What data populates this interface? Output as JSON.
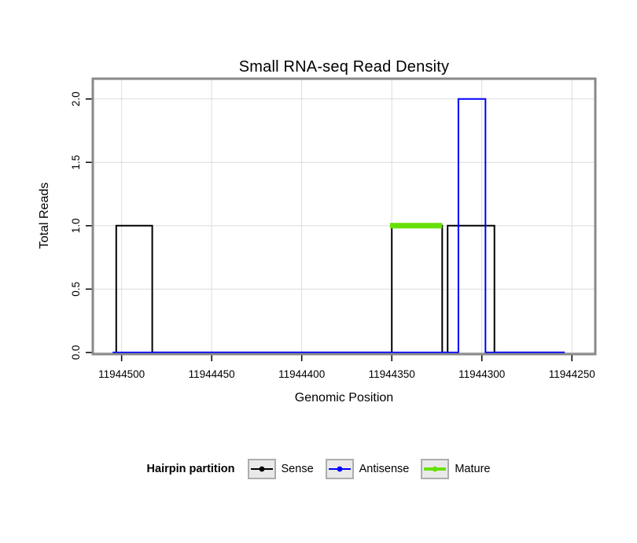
{
  "chart_data": {
    "type": "line",
    "subtype": "step",
    "title": "Small RNA-seq Read Density",
    "xlabel": "Genomic Position",
    "ylabel": "Total Reads",
    "x_axis_reversed": true,
    "xlim": [
      11944516,
      11944237
    ],
    "ylim": [
      -0.013,
      2.16
    ],
    "x_ticks": [
      11944500,
      11944450,
      11944400,
      11944350,
      11944300,
      11944250
    ],
    "x_tick_labels": [
      "11944500",
      "11944450",
      "11944400",
      "11944350",
      "11944300",
      "11944250"
    ],
    "y_ticks": [
      0,
      0.5,
      1,
      1.5,
      2
    ],
    "y_tick_labels": [
      "0.0",
      "0.5",
      "1.0",
      "1.5",
      "2.0"
    ],
    "grid": true,
    "colors": {
      "grid": "#dcdcdc",
      "panel_border": "#898989",
      "legend_key_fill": "#e9e9e9",
      "legend_key_border": "#adadad",
      "tick": "#000000"
    },
    "legend": {
      "title": "Hairpin partition",
      "position": "bottom",
      "entries": [
        "Sense",
        "Antisense",
        "Mature"
      ]
    },
    "series": [
      {
        "name": "Sense",
        "color": "#000000",
        "width": 2,
        "points": [
          [
            11944503,
            0
          ],
          [
            11944503,
            1
          ],
          [
            11944483,
            1
          ],
          [
            11944483,
            0
          ],
          [
            11944350,
            0
          ],
          [
            11944350,
            1
          ],
          [
            11944322,
            1
          ],
          [
            11944322,
            0
          ],
          [
            11944319,
            0
          ],
          [
            11944319,
            1
          ],
          [
            11944293,
            1
          ],
          [
            11944293,
            0
          ],
          [
            11944254,
            0
          ]
        ]
      },
      {
        "name": "Antisense",
        "color": "#0000ff",
        "width": 2,
        "points": [
          [
            11944505,
            0
          ],
          [
            11944313,
            0
          ],
          [
            11944313,
            2
          ],
          [
            11944298,
            2
          ],
          [
            11944298,
            0
          ],
          [
            11944254,
            0
          ]
        ]
      },
      {
        "name": "Mature",
        "color": "#66e000",
        "width": 7,
        "points": [
          [
            11944351,
            1
          ],
          [
            11944322,
            1
          ]
        ]
      }
    ]
  }
}
